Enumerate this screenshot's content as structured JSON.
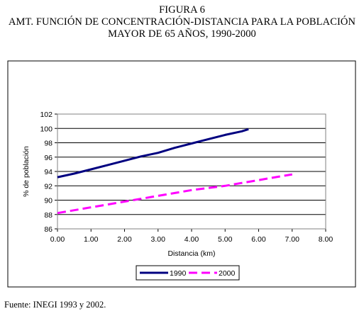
{
  "figure_number": "FIGURA 6",
  "title_line1": "AMT. FUNCIÓN DE CONCENTRACIÓN-DISTANCIA PARA LA POBLACIÓN",
  "title_line2": "MAYOR DE 65 AÑOS, 1990-2000",
  "source": "Fuente: INEGI 1993 y 2002.",
  "chart_data": {
    "type": "line",
    "title": "AMT. FUNCIÓN DE CONCENTRACIÓN-DISTANCIA PARA LA POBLACIÓN MAYOR DE 65 AÑOS, 1990-2000",
    "xlabel": "Distancia (km)",
    "ylabel": "% de población",
    "xlim": [
      0,
      8
    ],
    "ylim": [
      86,
      102
    ],
    "xticks": [
      "0.00",
      "1.00",
      "2.00",
      "3.00",
      "4.00",
      "5.00",
      "6.00",
      "7.00",
      "8.00"
    ],
    "yticks": [
      "86",
      "88",
      "90",
      "92",
      "94",
      "96",
      "98",
      "100",
      "102"
    ],
    "grid": "horizontal",
    "legend": "bottom",
    "series": [
      {
        "name": "1990",
        "color": "#000080",
        "style": "solid",
        "x": [
          0.0,
          0.5,
          1.0,
          1.5,
          2.0,
          2.5,
          3.0,
          3.5,
          4.0,
          4.5,
          5.0,
          5.5,
          5.7
        ],
        "y": [
          93.2,
          93.7,
          94.3,
          94.9,
          95.5,
          96.1,
          96.6,
          97.3,
          97.9,
          98.5,
          99.1,
          99.6,
          99.9
        ]
      },
      {
        "name": "2000",
        "color": "#ff00ff",
        "style": "dashed",
        "x": [
          0.0,
          0.5,
          1.0,
          1.5,
          2.0,
          2.5,
          3.0,
          3.5,
          4.0,
          4.5,
          5.0,
          5.5,
          6.0,
          6.5,
          7.0
        ],
        "y": [
          88.2,
          88.6,
          89.0,
          89.4,
          89.8,
          90.2,
          90.6,
          91.0,
          91.4,
          91.7,
          92.0,
          92.4,
          92.8,
          93.2,
          93.6
        ]
      }
    ]
  }
}
